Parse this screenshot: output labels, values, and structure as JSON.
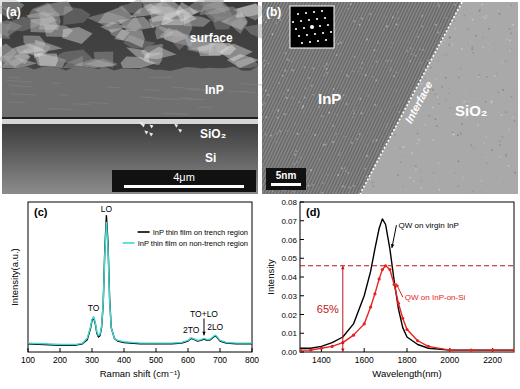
{
  "images": [
    {
      "label": "(a)",
      "layers": [
        "surface",
        "InP",
        "SiO₂",
        "Si"
      ],
      "scale_bar": "4μm"
    },
    {
      "label": "(b)",
      "regions": [
        "InP",
        "SiO₂"
      ],
      "interface": "Interface",
      "scale_bar": "5nm"
    }
  ],
  "chart_data": [
    {
      "type": "line",
      "title": "(c)",
      "x_label": "Raman shift (cm⁻¹)",
      "y_label": "Intensity(a.u.)",
      "x": [
        100,
        150,
        200,
        250,
        270,
        285,
        295,
        300,
        305,
        310,
        315,
        320,
        325,
        330,
        335,
        340,
        345,
        350,
        355,
        360,
        370,
        380,
        400,
        450,
        500,
        550,
        580,
        600,
        610,
        620,
        630,
        640,
        650,
        660,
        670,
        680,
        685,
        690,
        700,
        720,
        750,
        800
      ],
      "xlim": [
        100,
        800
      ],
      "xticks": [
        100,
        200,
        300,
        400,
        500,
        600,
        700,
        800
      ],
      "ylim": [
        0,
        1.1
      ],
      "tick_labels": "x",
      "legend": "upper right",
      "series": [
        {
          "name": "InP thin film on trench region",
          "color": "#000000",
          "values": [
            0.06,
            0.055,
            0.05,
            0.05,
            0.06,
            0.09,
            0.17,
            0.23,
            0.25,
            0.21,
            0.14,
            0.11,
            0.12,
            0.18,
            0.35,
            0.75,
            1.0,
            0.8,
            0.4,
            0.18,
            0.1,
            0.08,
            0.07,
            0.06,
            0.06,
            0.06,
            0.065,
            0.08,
            0.1,
            0.09,
            0.08,
            0.085,
            0.095,
            0.085,
            0.09,
            0.11,
            0.12,
            0.11,
            0.08,
            0.065,
            0.06,
            0.06
          ]
        },
        {
          "name": "InP thin film on non-trench region",
          "color": "#40d8d0",
          "values": [
            0.065,
            0.06,
            0.055,
            0.055,
            0.065,
            0.1,
            0.18,
            0.24,
            0.26,
            0.22,
            0.15,
            0.12,
            0.13,
            0.19,
            0.36,
            0.72,
            0.95,
            0.76,
            0.38,
            0.18,
            0.1,
            0.085,
            0.075,
            0.065,
            0.065,
            0.065,
            0.07,
            0.085,
            0.105,
            0.095,
            0.085,
            0.09,
            0.1,
            0.09,
            0.095,
            0.115,
            0.125,
            0.115,
            0.085,
            0.07,
            0.065,
            0.065
          ]
        }
      ],
      "annotations": [
        {
          "text": "TO",
          "x": 305,
          "y": 0.3
        },
        {
          "text": "LO",
          "x": 345,
          "y": 1.03
        },
        {
          "text": "2TO",
          "x": 610,
          "y": 0.14
        },
        {
          "text": "TO+LO",
          "x": 650,
          "y": 0.26
        },
        {
          "text": "2LO",
          "x": 685,
          "y": 0.16
        }
      ]
    },
    {
      "type": "line",
      "title": "(d)",
      "x_label": "Wavelength(nm)",
      "y_label": "Intensity",
      "x": [
        1300,
        1350,
        1400,
        1450,
        1500,
        1550,
        1600,
        1630,
        1650,
        1670,
        1685,
        1700,
        1720,
        1740,
        1760,
        1780,
        1800,
        1850,
        1900,
        2000,
        2100,
        2200,
        2300
      ],
      "xlim": [
        1300,
        2300
      ],
      "xticks": [
        1400,
        1600,
        1800,
        2000,
        2200
      ],
      "ylim": [
        0,
        0.08
      ],
      "yticks": [
        {
          "value": 0,
          "label": "0.00"
        },
        {
          "value": 0.01,
          "label": "0.01"
        },
        {
          "value": 0.02,
          "label": "0.02"
        },
        {
          "value": 0.03,
          "label": "0.03"
        },
        {
          "value": 0.04,
          "label": "0.04"
        },
        {
          "value": 0.05,
          "label": "0.05"
        },
        {
          "value": 0.06,
          "label": "0.06"
        },
        {
          "value": 0.07,
          "label": "0.07"
        },
        {
          "value": 0.08,
          "label": "0.08"
        }
      ],
      "series": [
        {
          "name": "QW on virgin InP",
          "color": "#000000",
          "values": [
            0.002,
            0.002,
            0.003,
            0.005,
            0.008,
            0.015,
            0.03,
            0.043,
            0.055,
            0.066,
            0.071,
            0.068,
            0.055,
            0.038,
            0.023,
            0.013,
            0.008,
            0.004,
            0.002,
            0.001,
            0.001,
            0.001,
            0.001
          ]
        },
        {
          "name": "QW on InP-on-Si",
          "color": "#e8221c",
          "marker": "circle",
          "values": [
            0.001,
            0.001,
            0.002,
            0.003,
            0.005,
            0.009,
            0.015,
            0.024,
            0.031,
            0.039,
            0.044,
            0.046,
            0.044,
            0.036,
            0.026,
            0.018,
            0.012,
            0.006,
            0.003,
            0.001,
            0.001,
            0.001,
            0.001
          ]
        }
      ],
      "ratio_marker": {
        "label": "65%",
        "x": 1500,
        "y": 0.046
      }
    }
  ]
}
